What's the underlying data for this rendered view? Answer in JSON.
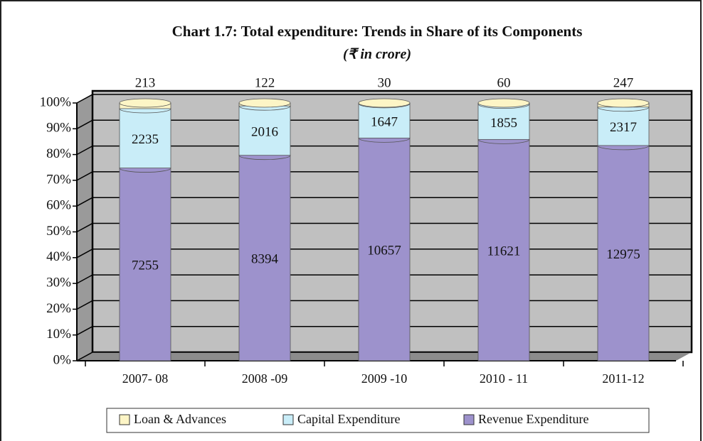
{
  "chart_data": {
    "type": "stacked-cylinder",
    "stacked": "percent",
    "title": "Chart 1.7: Total expenditure: Trends in Share of its Components",
    "subtitle": "(₹ in crore)",
    "categories": [
      "2007- 08",
      "2008 -09",
      "2009 -10",
      "2010 - 11",
      "2011-12"
    ],
    "series": [
      {
        "name": "Revenue Expenditure",
        "color": "#9d92cc",
        "values": [
          7255,
          8394,
          10657,
          11621,
          12975
        ]
      },
      {
        "name": "Capital Expenditure",
        "color": "#c9edf8",
        "values": [
          2235,
          2016,
          1647,
          1855,
          2317
        ]
      },
      {
        "name": "Loan & Advances",
        "color": "#fdf5c6",
        "values": [
          213,
          122,
          30,
          60,
          247
        ]
      }
    ],
    "ylim": [
      0,
      100
    ],
    "yticks": [
      {
        "value": 0,
        "label": "0%"
      },
      {
        "value": 10,
        "label": "10%"
      },
      {
        "value": 20,
        "label": "20%"
      },
      {
        "value": 30,
        "label": "30%"
      },
      {
        "value": 40,
        "label": "40%"
      },
      {
        "value": 50,
        "label": "50%"
      },
      {
        "value": 60,
        "label": "60%"
      },
      {
        "value": 70,
        "label": "70%"
      },
      {
        "value": 80,
        "label": "80%"
      },
      {
        "value": 90,
        "label": "90%"
      },
      {
        "value": 100,
        "label": "100%"
      }
    ],
    "grid": true
  }
}
